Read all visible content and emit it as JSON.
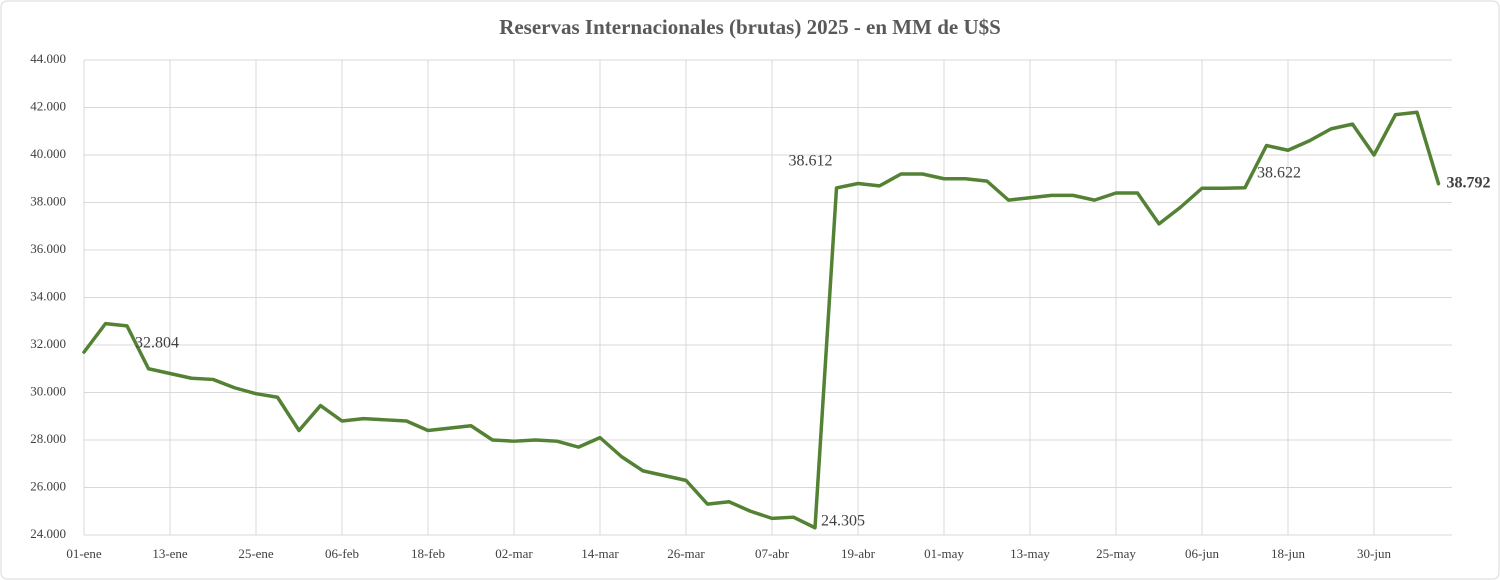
{
  "chart_data": {
    "type": "line",
    "title": "Reservas Internacionales (brutas)  2025 - en MM de U$S",
    "categories": [
      "01-ene",
      null,
      null,
      null,
      "13-ene",
      null,
      null,
      null,
      "25-ene",
      null,
      null,
      null,
      "06-feb",
      null,
      null,
      null,
      "18-feb",
      null,
      null,
      null,
      "02-mar",
      null,
      null,
      null,
      "14-mar",
      null,
      null,
      null,
      "26-mar",
      null,
      null,
      null,
      "07-abr",
      null,
      null,
      null,
      "19-abr",
      null,
      null,
      null,
      "01-may",
      null,
      null,
      null,
      "13-may",
      null,
      null,
      null,
      "25-may",
      null,
      null,
      null,
      "06-jun",
      null,
      null,
      null,
      "18-jun",
      null,
      null,
      null,
      "30-jun",
      null,
      null,
      null
    ],
    "series": [
      {
        "color": "#548235",
        "values": [
          31700,
          32900,
          32804,
          31000,
          30800,
          30600,
          30550,
          30200,
          29950,
          29800,
          28400,
          29450,
          28800,
          28900,
          28850,
          28800,
          28400,
          28500,
          28600,
          28000,
          27950,
          28000,
          27950,
          27700,
          28100,
          27300,
          26700,
          26500,
          26300,
          25300,
          25400,
          25000,
          24700,
          24750,
          24305,
          38612,
          38800,
          38700,
          39200,
          39200,
          39000,
          39000,
          38900,
          38100,
          38200,
          38300,
          38300,
          38100,
          38400,
          38400,
          37100,
          37800,
          38600,
          38600,
          38622,
          40400,
          40200,
          40600,
          41100,
          41300,
          40000,
          41700,
          41800,
          38792
        ],
        "value_labels": [
          null,
          null,
          "32.804",
          null,
          null,
          null,
          null,
          null,
          null,
          null,
          null,
          null,
          null,
          null,
          null,
          null,
          null,
          null,
          null,
          null,
          null,
          null,
          null,
          null,
          null,
          null,
          null,
          null,
          null,
          null,
          null,
          null,
          null,
          null,
          "24.305",
          "38.612",
          null,
          null,
          null,
          null,
          null,
          null,
          null,
          null,
          null,
          null,
          null,
          null,
          null,
          null,
          null,
          null,
          null,
          null,
          "38.622",
          null,
          null,
          null,
          null,
          null,
          null,
          null,
          null,
          "38.792"
        ]
      }
    ],
    "ylim": [
      24000,
      44000
    ],
    "yticks": [
      {
        "value": 24000,
        "label": "24.000"
      },
      {
        "value": 26000,
        "label": "26.000"
      },
      {
        "value": 28000,
        "label": "28.000"
      },
      {
        "value": 30000,
        "label": "30.000"
      },
      {
        "value": 32000,
        "label": "32.000"
      },
      {
        "value": 34000,
        "label": "34.000"
      },
      {
        "value": 36000,
        "label": "36.000"
      },
      {
        "value": 38000,
        "label": "38.000"
      },
      {
        "value": 40000,
        "label": "40.000"
      },
      {
        "value": 42000,
        "label": "42.000"
      },
      {
        "value": 44000,
        "label": "44.000"
      }
    ],
    "grid": true
  }
}
